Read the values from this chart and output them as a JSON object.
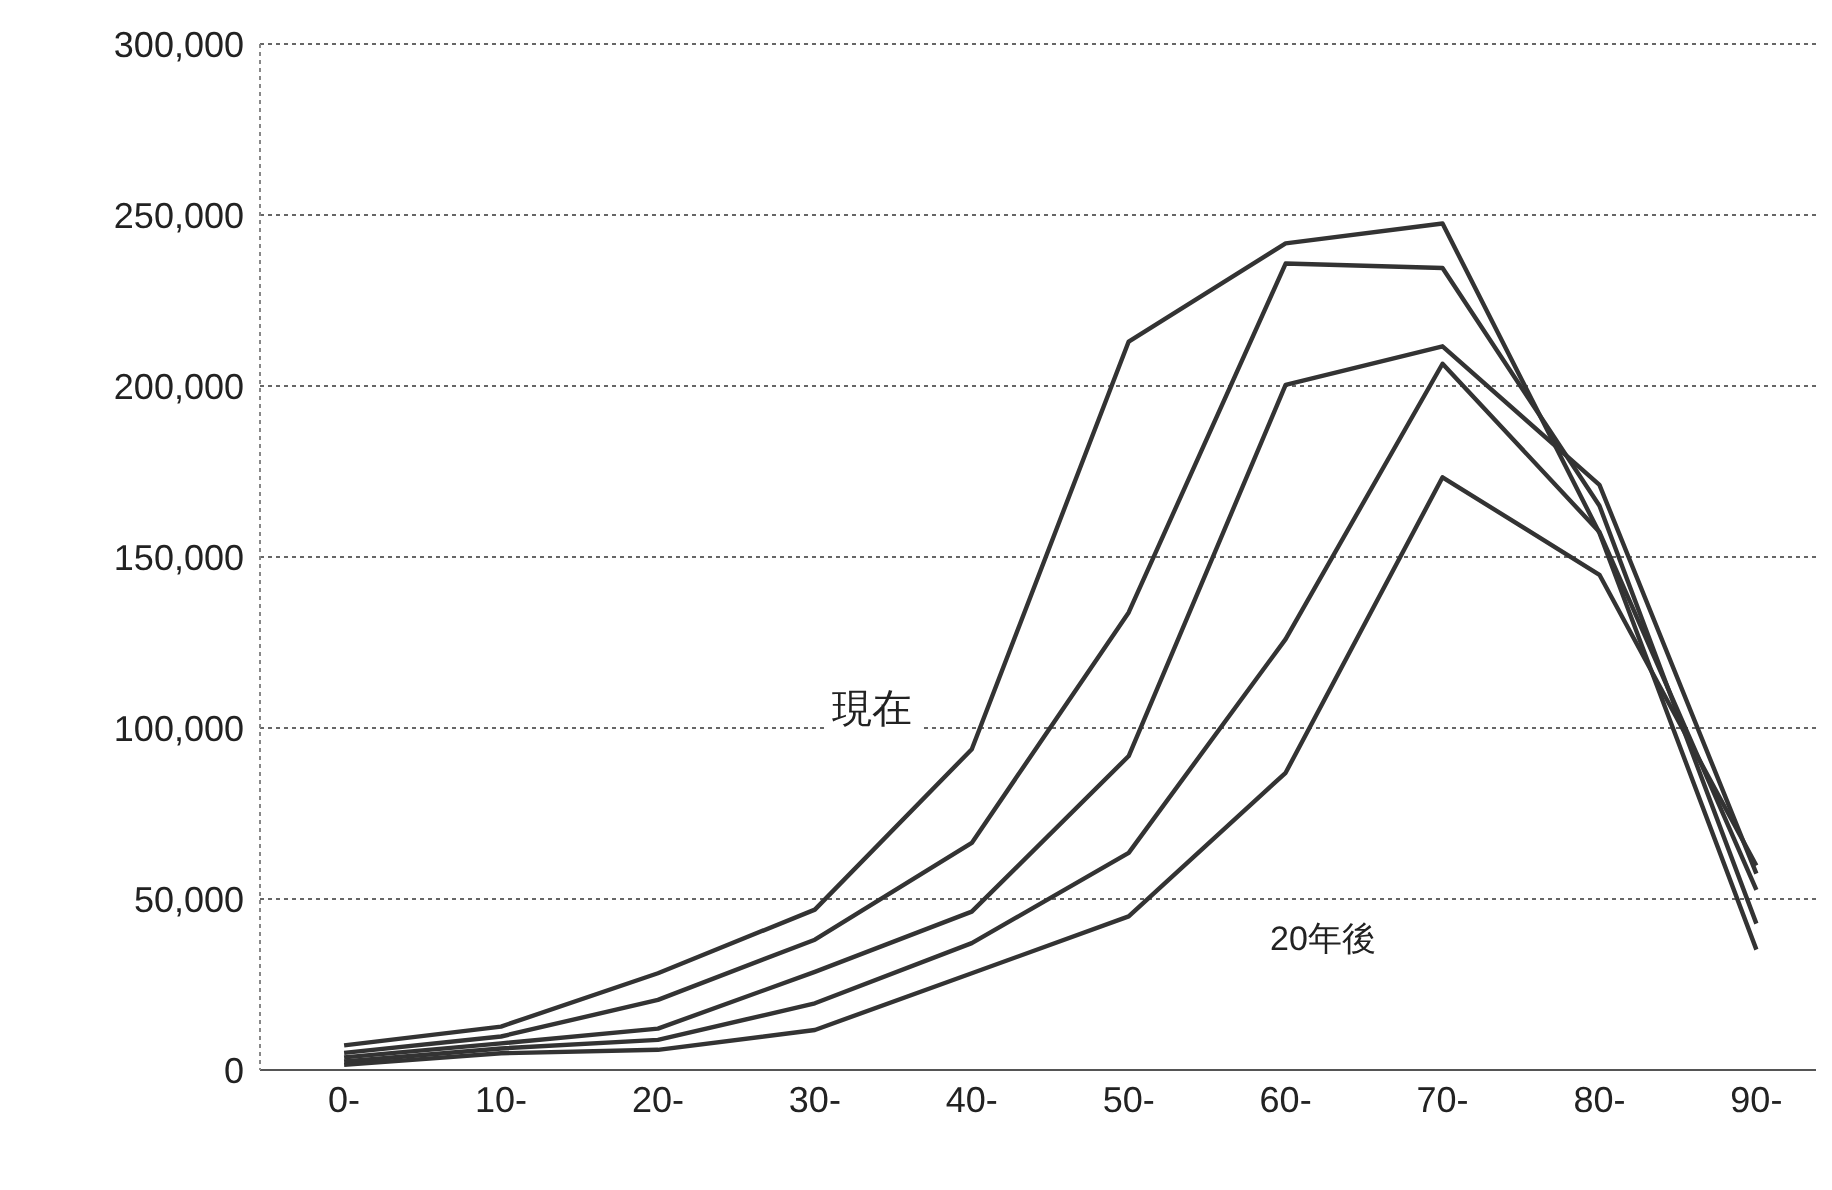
{
  "chart_data": {
    "type": "line",
    "categories": [
      "0-",
      "10-",
      "20-",
      "30-",
      "40-",
      "50-",
      "60-",
      "70-",
      "80-",
      "90-"
    ],
    "series": [
      {
        "color": "#333333",
        "values": [
          7200,
          12700,
          28300,
          46900,
          93800,
          213000,
          241700,
          247500,
          157000,
          35200
        ]
      },
      {
        "color": "#333333",
        "values": [
          5000,
          9800,
          20500,
          38100,
          66400,
          133800,
          235800,
          234500,
          165000,
          42800
        ]
      },
      {
        "color": "#333333",
        "values": [
          3700,
          7800,
          12100,
          28700,
          46300,
          91800,
          200300,
          211600,
          171100,
          57400
        ]
      },
      {
        "color": "#333333",
        "values": [
          2500,
          6300,
          8800,
          19500,
          37100,
          63500,
          126000,
          206500,
          157300,
          52700
        ]
      },
      {
        "color": "#333333",
        "values": [
          1500,
          4900,
          5900,
          11700,
          28300,
          44900,
          86900,
          173300,
          144800,
          59800
        ]
      }
    ],
    "ylim": [
      0,
      300000
    ],
    "yticks": [
      0,
      {
        "value": 50000,
        "label": "50,000"
      },
      {
        "value": 100000,
        "label": "100,000"
      },
      {
        "value": 150000,
        "label": "150,000"
      },
      {
        "value": 200000,
        "label": "200,000"
      },
      {
        "value": 250000,
        "label": "250,000"
      },
      {
        "value": 300000,
        "label": "300,000"
      }
    ],
    "grid": "y",
    "marker": "none",
    "line_style": "solid",
    "annotations": [
      "現在",
      "20年後"
    ]
  }
}
